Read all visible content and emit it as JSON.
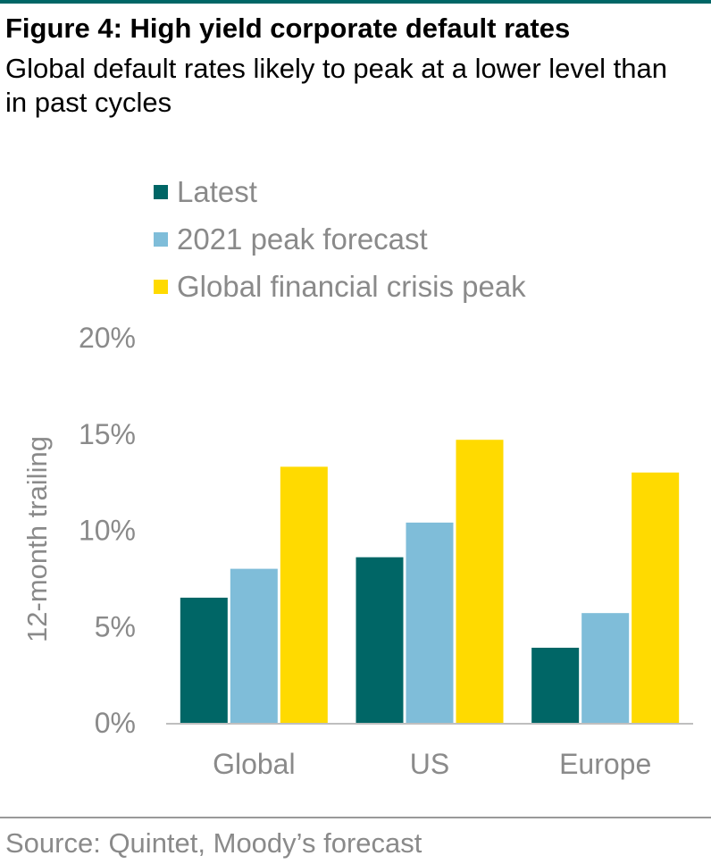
{
  "header": {
    "title": "Figure 4: High yield corporate default rates",
    "subtitle": "Global default rates likely to peak at a lower level than in past cycles"
  },
  "footer": {
    "source": "Source: Quintet, Moody’s forecast"
  },
  "colors": {
    "accent_rule": "#006666",
    "latest": "#006666",
    "peak_forecast": "#7FBDD9",
    "gfc_peak": "#FFDA00",
    "text_gray": "#8a8a8a",
    "axis": "#bfbfbf"
  },
  "chart_data": {
    "type": "bar",
    "categories": [
      "Global",
      "US",
      "Europe"
    ],
    "series": [
      {
        "name": "Latest",
        "values": [
          6.5,
          8.6,
          3.9
        ]
      },
      {
        "name": "2021 peak forecast",
        "values": [
          8.0,
          10.4,
          5.7
        ]
      },
      {
        "name": "Global financial crisis peak",
        "values": [
          13.3,
          14.7,
          13.0
        ]
      }
    ],
    "ylabel": "12-month trailing",
    "ylim": [
      0,
      20
    ],
    "yticks": [
      "0%",
      "5%",
      "10%",
      "15%",
      "20%"
    ],
    "ytick_values": [
      0,
      5,
      10,
      15,
      20
    ],
    "grid": false,
    "legend_position": "top-left"
  }
}
